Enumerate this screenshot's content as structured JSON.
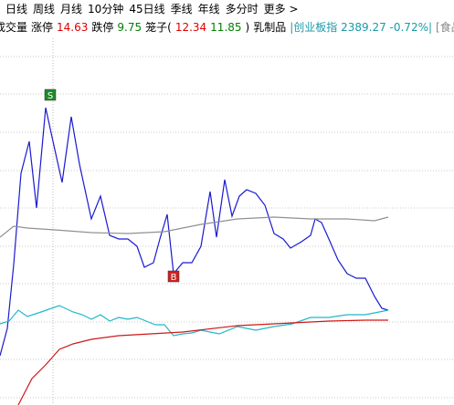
{
  "toolbar": {
    "tabs": [
      "日线",
      "周线",
      "月线",
      "10分钟",
      "45日线",
      "季线",
      "年线",
      "多分时",
      "更多 >"
    ]
  },
  "info": {
    "items": [
      {
        "text": "成交量",
        "color": "#000000"
      },
      {
        "text": "涨停",
        "color": "#000000"
      },
      {
        "text": "14.63",
        "color": "#e00000"
      },
      {
        "text": "跌停",
        "color": "#000000"
      },
      {
        "text": "9.75",
        "color": "#008000"
      },
      {
        "text": "笼子(",
        "color": "#000000"
      },
      {
        "text": "12.34",
        "color": "#e00000"
      },
      {
        "text": "11.85",
        "color": "#008000"
      },
      {
        "text": ")",
        "color": "#000000"
      },
      {
        "text": "乳制品",
        "color": "#000000"
      },
      {
        "text": "|创业板指 2389.27 -0.72%|",
        "color": "#1a9aa8"
      },
      {
        "text": "[食品饮料",
        "color": "#888888"
      }
    ]
  },
  "chart_data": {
    "type": "line",
    "xlim": [
      0,
      497
    ],
    "ylim": [
      0,
      402
    ],
    "yticks": [
      382,
      341,
      299,
      257,
      216,
      174,
      133,
      91,
      50,
      8
    ],
    "grid": true,
    "series": [
      {
        "color": "#1a1ad0",
        "x": [
          0,
          8,
          15,
          23,
          32,
          40,
          50,
          58,
          68,
          78,
          87,
          100,
          110,
          120,
          130,
          140,
          150,
          158,
          168,
          175,
          183,
          190,
          200,
          210,
          220,
          230,
          237,
          246,
          254,
          262,
          270,
          280,
          290,
          300,
          310,
          318,
          330,
          340,
          345,
          352,
          360,
          370,
          380,
          390,
          400,
          410,
          418,
          425
        ],
        "values": [
          54,
          84,
          154,
          254,
          289,
          216,
          326,
          289,
          244,
          316,
          264,
          204,
          229,
          186,
          182,
          182,
          174,
          151,
          156,
          182,
          209,
          144,
          156,
          156,
          174,
          234,
          184,
          247,
          207,
          229,
          236,
          232,
          219,
          188,
          182,
          172,
          179,
          186,
          204,
          200,
          182,
          159,
          144,
          139,
          139,
          119,
          106,
          104
        ]
      },
      {
        "color": "#909090",
        "x": [
          0,
          15,
          30,
          60,
          100,
          140,
          180,
          220,
          260,
          300,
          340,
          380,
          410,
          425
        ],
        "values": [
          184,
          196,
          194,
          192,
          189,
          188,
          190,
          198,
          204,
          206,
          204,
          204,
          202,
          206
        ]
      },
      {
        "color": "#20b8c8",
        "x": [
          0,
          10,
          20,
          30,
          45,
          65,
          80,
          90,
          100,
          110,
          120,
          130,
          140,
          150,
          160,
          170,
          180,
          190,
          200,
          210,
          220,
          240,
          260,
          280,
          300,
          320,
          340,
          360,
          380,
          400,
          415,
          425
        ],
        "values": [
          89,
          92,
          104,
          97,
          102,
          109,
          102,
          99,
          94,
          99,
          92,
          96,
          94,
          96,
          92,
          88,
          88,
          76,
          78,
          79,
          82,
          78,
          86,
          82,
          86,
          89,
          96,
          96,
          99,
          99,
          102,
          104
        ]
      },
      {
        "color": "#d01818",
        "x": [
          20,
          35,
          50,
          65,
          80,
          100,
          130,
          200,
          260,
          320,
          360,
          400,
          425
        ],
        "values": [
          0,
          29,
          44,
          61,
          67,
          72,
          76,
          80,
          87,
          90,
          92,
          93,
          93
        ]
      }
    ],
    "annotations": [
      {
        "text": "S",
        "x": 55,
        "y": 340,
        "color": "#1f8a2a"
      },
      {
        "text": "B",
        "x": 190,
        "y": 141,
        "color": "#d02020"
      }
    ]
  }
}
